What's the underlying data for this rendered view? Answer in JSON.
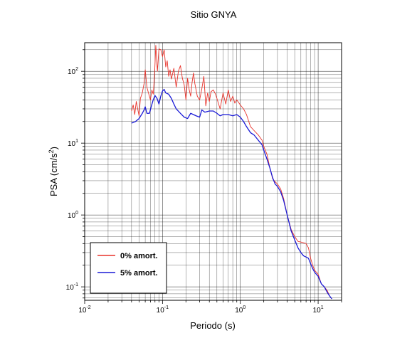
{
  "chart_data": {
    "type": "line",
    "title": "Sitio GNYA",
    "xlabel": "Periodo (s)",
    "ylabel": "PSA (cm/s²)",
    "ylabel_parts": {
      "base": "PSA (cm/s",
      "exp": "2",
      "end": ")"
    },
    "xscale": "log",
    "yscale": "log",
    "xlim": [
      0.01,
      20
    ],
    "ylim": [
      0.065,
      250
    ],
    "grid": true,
    "legend_position": "bottom-left",
    "x_ticks": [
      {
        "base": "10",
        "exp": "-2"
      },
      {
        "base": "10",
        "exp": "-1"
      },
      {
        "base": "10",
        "exp": "0"
      },
      {
        "base": "10",
        "exp": "1"
      }
    ],
    "y_ticks": [
      {
        "base": "10",
        "exp": "-1"
      },
      {
        "base": "10",
        "exp": "0"
      },
      {
        "base": "10",
        "exp": "1"
      },
      {
        "base": "10",
        "exp": "2"
      }
    ],
    "series": [
      {
        "name": "0% amort.",
        "color": "#e8322a",
        "points": [
          [
            0.04,
            28
          ],
          [
            0.042,
            34
          ],
          [
            0.044,
            25
          ],
          [
            0.046,
            38
          ],
          [
            0.048,
            30
          ],
          [
            0.05,
            24
          ],
          [
            0.052,
            42
          ],
          [
            0.055,
            50
          ],
          [
            0.058,
            68
          ],
          [
            0.06,
            105
          ],
          [
            0.063,
            60
          ],
          [
            0.066,
            50
          ],
          [
            0.07,
            40
          ],
          [
            0.073,
            55
          ],
          [
            0.076,
            48
          ],
          [
            0.079,
            90
          ],
          [
            0.082,
            230
          ],
          [
            0.086,
            100
          ],
          [
            0.09,
            205
          ],
          [
            0.095,
            200
          ],
          [
            0.1,
            160
          ],
          [
            0.105,
            200
          ],
          [
            0.11,
            115
          ],
          [
            0.115,
            140
          ],
          [
            0.12,
            85
          ],
          [
            0.125,
            105
          ],
          [
            0.13,
            78
          ],
          [
            0.14,
            110
          ],
          [
            0.15,
            60
          ],
          [
            0.16,
            100
          ],
          [
            0.17,
            120
          ],
          [
            0.18,
            80
          ],
          [
            0.19,
            65
          ],
          [
            0.2,
            40
          ],
          [
            0.21,
            80
          ],
          [
            0.22,
            56
          ],
          [
            0.23,
            45
          ],
          [
            0.24,
            70
          ],
          [
            0.25,
            95
          ],
          [
            0.26,
            68
          ],
          [
            0.28,
            45
          ],
          [
            0.3,
            40
          ],
          [
            0.32,
            57
          ],
          [
            0.34,
            85
          ],
          [
            0.36,
            33
          ],
          [
            0.38,
            50
          ],
          [
            0.4,
            38
          ],
          [
            0.42,
            52
          ],
          [
            0.45,
            55
          ],
          [
            0.48,
            48
          ],
          [
            0.5,
            42
          ],
          [
            0.55,
            30
          ],
          [
            0.6,
            50
          ],
          [
            0.65,
            35
          ],
          [
            0.7,
            55
          ],
          [
            0.75,
            38
          ],
          [
            0.8,
            45
          ],
          [
            0.85,
            36
          ],
          [
            0.9,
            40
          ],
          [
            1.0,
            34
          ],
          [
            1.1,
            30
          ],
          [
            1.2,
            25
          ],
          [
            1.35,
            17
          ],
          [
            1.5,
            15
          ],
          [
            1.7,
            13
          ],
          [
            1.9,
            11
          ],
          [
            2.0,
            9
          ],
          [
            2.2,
            7
          ],
          [
            2.4,
            4.5
          ],
          [
            2.6,
            3.2
          ],
          [
            2.8,
            2.9
          ],
          [
            3.0,
            2.7
          ],
          [
            3.3,
            2.3
          ],
          [
            3.6,
            1.7
          ],
          [
            4.0,
            1.0
          ],
          [
            4.5,
            0.63
          ],
          [
            5.0,
            0.5
          ],
          [
            5.5,
            0.43
          ],
          [
            6.0,
            0.42
          ],
          [
            6.5,
            0.41
          ],
          [
            7.0,
            0.4
          ],
          [
            7.5,
            0.35
          ],
          [
            8.0,
            0.25
          ],
          [
            8.5,
            0.2
          ],
          [
            9.0,
            0.17
          ],
          [
            10.0,
            0.15
          ],
          [
            11.0,
            0.11
          ],
          [
            12.0,
            0.1
          ],
          [
            13.0,
            0.09
          ],
          [
            14.0,
            0.075
          ],
          [
            15.0,
            0.068
          ]
        ]
      },
      {
        "name": "5% amort.",
        "color": "#1a1ad6",
        "points": [
          [
            0.04,
            19
          ],
          [
            0.045,
            20
          ],
          [
            0.05,
            22
          ],
          [
            0.055,
            26
          ],
          [
            0.058,
            29
          ],
          [
            0.06,
            32
          ],
          [
            0.063,
            26
          ],
          [
            0.068,
            26
          ],
          [
            0.072,
            33
          ],
          [
            0.076,
            40
          ],
          [
            0.08,
            46
          ],
          [
            0.085,
            42
          ],
          [
            0.09,
            35
          ],
          [
            0.095,
            45
          ],
          [
            0.1,
            53
          ],
          [
            0.105,
            56
          ],
          [
            0.11,
            50
          ],
          [
            0.12,
            48
          ],
          [
            0.13,
            42
          ],
          [
            0.14,
            35
          ],
          [
            0.15,
            30
          ],
          [
            0.17,
            26
          ],
          [
            0.19,
            23
          ],
          [
            0.21,
            22
          ],
          [
            0.23,
            26
          ],
          [
            0.25,
            25
          ],
          [
            0.27,
            24
          ],
          [
            0.3,
            23
          ],
          [
            0.32,
            29
          ],
          [
            0.35,
            27
          ],
          [
            0.4,
            28
          ],
          [
            0.45,
            28
          ],
          [
            0.5,
            26
          ],
          [
            0.55,
            24
          ],
          [
            0.6,
            25
          ],
          [
            0.7,
            25
          ],
          [
            0.8,
            24
          ],
          [
            0.9,
            25
          ],
          [
            1.0,
            23
          ],
          [
            1.1,
            20
          ],
          [
            1.2,
            17
          ],
          [
            1.35,
            14
          ],
          [
            1.5,
            13
          ],
          [
            1.7,
            11
          ],
          [
            1.9,
            9.5
          ],
          [
            2.0,
            8
          ],
          [
            2.2,
            6
          ],
          [
            2.4,
            4.5
          ],
          [
            2.6,
            3.3
          ],
          [
            2.8,
            2.7
          ],
          [
            3.0,
            2.5
          ],
          [
            3.3,
            2.1
          ],
          [
            3.6,
            1.6
          ],
          [
            4.0,
            1.0
          ],
          [
            4.5,
            0.6
          ],
          [
            5.0,
            0.45
          ],
          [
            5.5,
            0.35
          ],
          [
            6.0,
            0.3
          ],
          [
            6.5,
            0.27
          ],
          [
            7.0,
            0.26
          ],
          [
            7.5,
            0.25
          ],
          [
            8.0,
            0.21
          ],
          [
            8.5,
            0.18
          ],
          [
            9.0,
            0.16
          ],
          [
            10.0,
            0.14
          ],
          [
            11.0,
            0.11
          ],
          [
            12.0,
            0.1
          ],
          [
            13.0,
            0.085
          ],
          [
            14.0,
            0.075
          ],
          [
            15.0,
            0.068
          ]
        ]
      }
    ]
  }
}
